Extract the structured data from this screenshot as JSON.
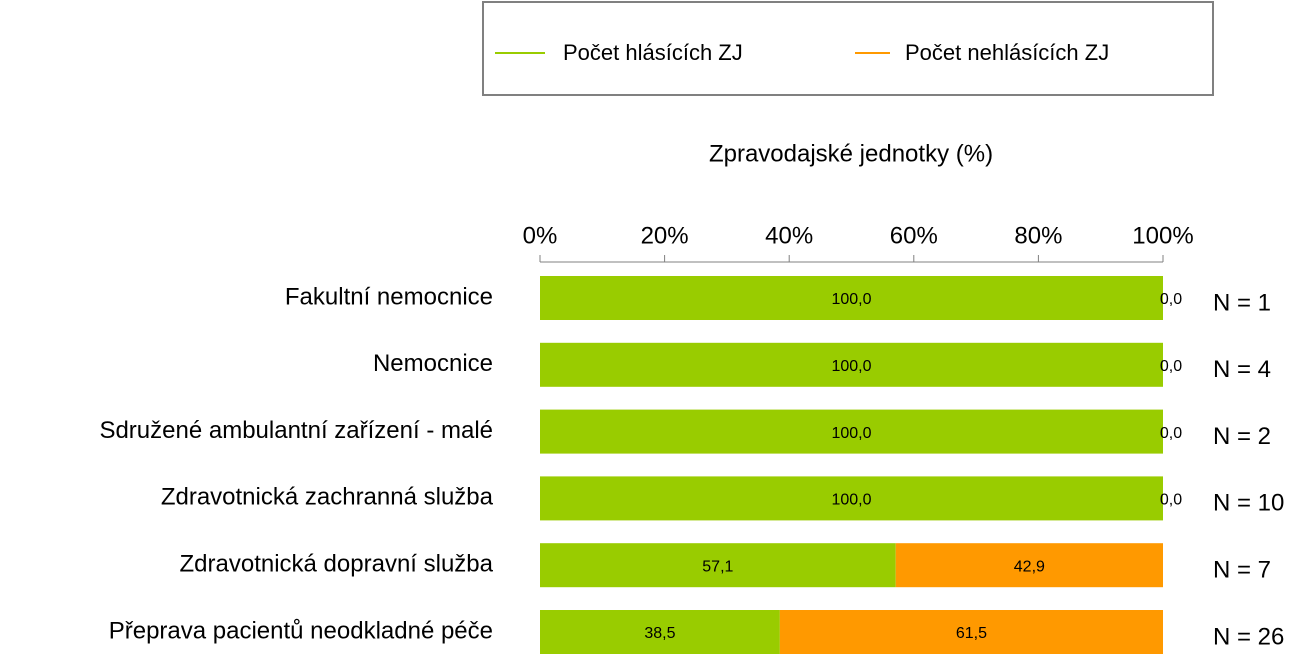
{
  "chart_data": {
    "type": "stacked-bar-horizontal",
    "x_axis_label": "Zpravodajské jednotky (%)",
    "categories": [
      "Fakultní nemocnice",
      "Nemocnice",
      "Sdružené ambulantní zařízení - malé",
      "Zdravotnická zachranná služba",
      "Zdravotnická dopravní služba",
      "Přeprava pacientů neodkladné péče"
    ],
    "series": [
      {
        "name": "Počet hlásících ZJ",
        "color": "#99cc00",
        "values": [
          100,
          100,
          100,
          100,
          57.1,
          38.5
        ],
        "value_labels": [
          "100,0",
          "100,0",
          "100,0",
          "100,0",
          "57,1",
          "38,5"
        ]
      },
      {
        "name": "Počet nehlásících ZJ",
        "color": "#ff9900",
        "values": [
          0,
          0,
          0,
          0,
          42.9,
          61.5
        ],
        "value_labels": [
          "0,0",
          "0,0",
          "0,0",
          "0,0",
          "42,9",
          "61,5"
        ]
      }
    ],
    "annotations": [
      "N = 1",
      "N = 4",
      "N = 2",
      "N = 10",
      "N = 7",
      "N = 26"
    ],
    "xlim": [
      0,
      100
    ],
    "xticks": [
      {
        "value": 0,
        "label": "0%"
      },
      {
        "value": 20,
        "label": "20%"
      },
      {
        "value": 40,
        "label": "40%"
      },
      {
        "value": 60,
        "label": "60%"
      },
      {
        "value": 80,
        "label": "80%"
      },
      {
        "value": 100,
        "label": "100%"
      }
    ],
    "legend": "top"
  }
}
